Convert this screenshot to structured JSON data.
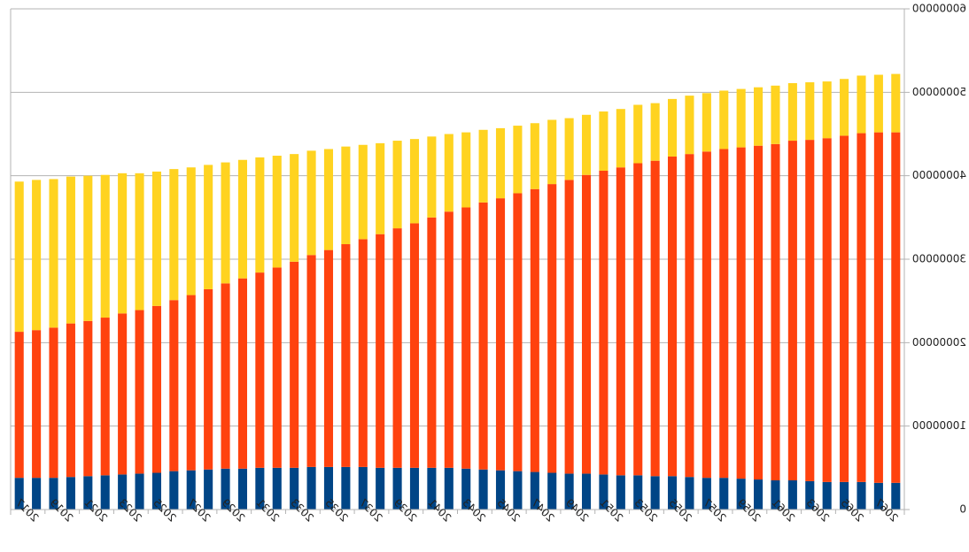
{
  "chart_data": {
    "type": "bar",
    "stacked": true,
    "mirrored_horizontally": true,
    "title": "",
    "xlabel": "",
    "ylabel": "",
    "ylim": [
      0,
      60000000
    ],
    "yticks": [
      0,
      10000000,
      20000000,
      30000000,
      40000000,
      50000000,
      60000000
    ],
    "ytick_labels": [
      "0",
      "10000000",
      "20000000",
      "30000000",
      "40000000",
      "50000000",
      "60000000"
    ],
    "y_axis_side": "right",
    "grid": true,
    "legend": "none",
    "x": [
      2016,
      2017,
      2018,
      2019,
      2020,
      2021,
      2022,
      2023,
      2024,
      2025,
      2026,
      2027,
      2028,
      2029,
      2030,
      2031,
      2032,
      2033,
      2034,
      2035,
      2036,
      2037,
      2038,
      2039,
      2040,
      2041,
      2042,
      2043,
      2044,
      2045,
      2046,
      2047,
      2048,
      2049,
      2050,
      2051,
      2052,
      2053,
      2054,
      2055,
      2056,
      2057,
      2058,
      2059,
      2060,
      2061,
      2062,
      2063,
      2064,
      2065,
      2066,
      2067
    ],
    "xtick_labels": [
      "2017",
      "2019",
      "2021",
      "2023",
      "2025",
      "2027",
      "2029",
      "2031",
      "2033",
      "2035",
      "2037",
      "2039",
      "2041",
      "2043",
      "2045",
      "2047",
      "2049",
      "2051",
      "2053",
      "2055",
      "2057",
      "2059",
      "2061",
      "2063",
      "2065",
      "2067"
    ],
    "series": [
      {
        "color": "#004586",
        "values": [
          3800000,
          3800000,
          3800000,
          3900000,
          4000000,
          4100000,
          4200000,
          4300000,
          4400000,
          4600000,
          4700000,
          4800000,
          4900000,
          4900000,
          5000000,
          5000000,
          5000000,
          5100000,
          5100000,
          5100000,
          5100000,
          5000000,
          5000000,
          5000000,
          5000000,
          5000000,
          4900000,
          4800000,
          4700000,
          4600000,
          4500000,
          4400000,
          4300000,
          4300000,
          4200000,
          4100000,
          4100000,
          4000000,
          4000000,
          3900000,
          3800000,
          3800000,
          3700000,
          3600000,
          3500000,
          3500000,
          3400000,
          3300000,
          3300000,
          3300000,
          3200000,
          3200000
        ]
      },
      {
        "color": "#ff420e",
        "values": [
          17500000,
          17700000,
          18000000,
          18400000,
          18600000,
          18900000,
          19300000,
          19600000,
          20000000,
          20500000,
          21000000,
          21600000,
          22200000,
          22800000,
          23400000,
          24000000,
          24700000,
          25400000,
          26000000,
          26700000,
          27300000,
          28000000,
          28700000,
          29300000,
          30000000,
          30700000,
          31300000,
          32000000,
          32600000,
          33300000,
          33900000,
          34600000,
          35200000,
          35800000,
          36400000,
          36900000,
          37400000,
          37800000,
          38300000,
          38700000,
          39100000,
          39400000,
          39700000,
          40000000,
          40300000,
          40700000,
          40900000,
          41200000,
          41500000,
          41800000,
          42000000,
          42000000
        ]
      },
      {
        "color": "#ffd320",
        "values": [
          18000000,
          18000000,
          17800000,
          17600000,
          17400000,
          17100000,
          16800000,
          16400000,
          16100000,
          15700000,
          15300000,
          14900000,
          14500000,
          14200000,
          13800000,
          13400000,
          12900000,
          12500000,
          12100000,
          11700000,
          11300000,
          10900000,
          10500000,
          10100000,
          9700000,
          9300000,
          9000000,
          8700000,
          8400000,
          8100000,
          7900000,
          7700000,
          7400000,
          7200000,
          7100000,
          7000000,
          7000000,
          6900000,
          6900000,
          7000000,
          7000000,
          7000000,
          7000000,
          7000000,
          7000000,
          6900000,
          6900000,
          6800000,
          6800000,
          6900000,
          6900000,
          7000000
        ]
      }
    ]
  }
}
